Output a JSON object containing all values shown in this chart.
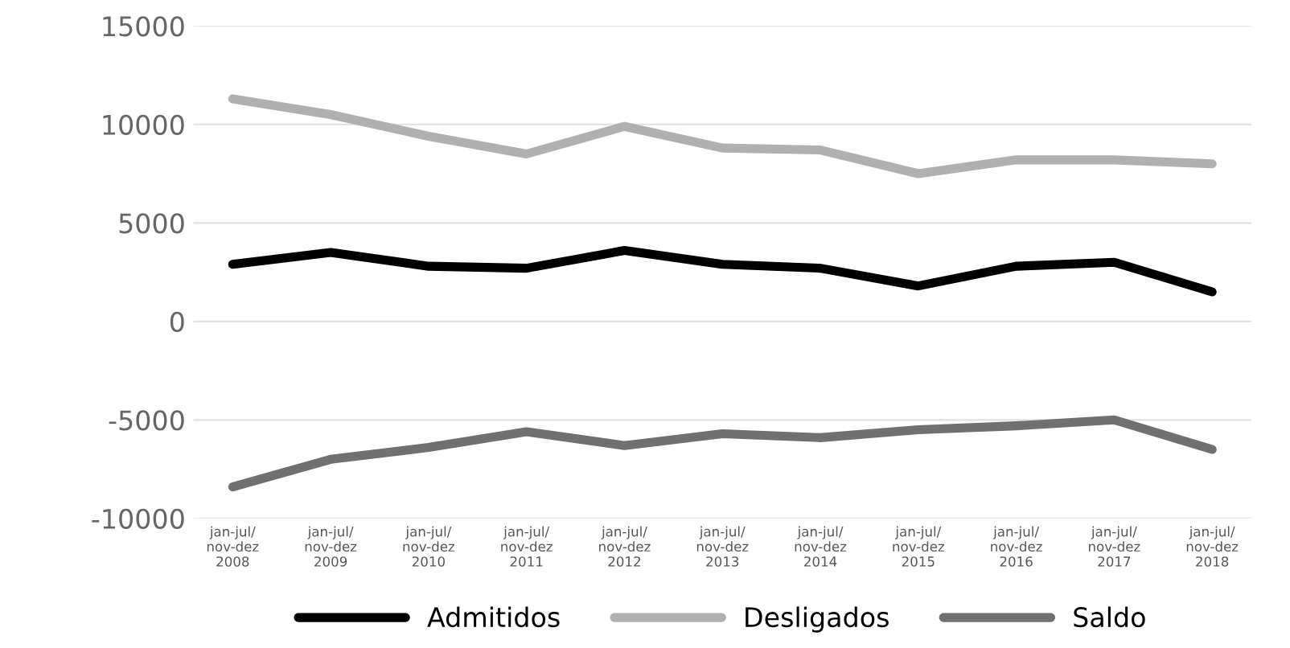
{
  "chart_data": {
    "type": "line",
    "categories": [
      "jan-jul/\nnov-dez\n2008",
      "jan-jul/\nnov-dez\n2009",
      "jan-jul/\nnov-dez\n2010",
      "jan-jul/\nnov-dez\n2011",
      "jan-jul/\nnov-dez\n2012",
      "jan-jul/\nnov-dez\n2013",
      "jan-jul/\nnov-dez\n2014",
      "jan-jul/\nnov-dez\n2015",
      "jan-jul/\nnov-dez\n2016",
      "jan-jul/\nnov-dez\n2017",
      "jan-jul/\nnov-dez\n2018"
    ],
    "series": [
      {
        "name": "Admitidos",
        "color": "#000000",
        "values": [
          2900,
          3500,
          2800,
          2700,
          3600,
          2900,
          2700,
          1800,
          2800,
          3000,
          1500
        ]
      },
      {
        "name": "Desligados",
        "color": "#b0b0b0",
        "values": [
          11300,
          10500,
          9400,
          8500,
          9900,
          8800,
          8700,
          7500,
          8200,
          8200,
          8000
        ]
      },
      {
        "name": "Saldo",
        "color": "#707070",
        "values": [
          -8400,
          -7000,
          -6400,
          -5600,
          -6300,
          -5700,
          -5900,
          -5500,
          -5300,
          -5000,
          -6500
        ]
      }
    ],
    "ylim": [
      -10000,
      15000
    ],
    "yticks": [
      -10000,
      -5000,
      0,
      5000,
      10000,
      15000
    ],
    "grid": "y",
    "legend": "bottom",
    "marker": "none",
    "line_style": "solid"
  }
}
